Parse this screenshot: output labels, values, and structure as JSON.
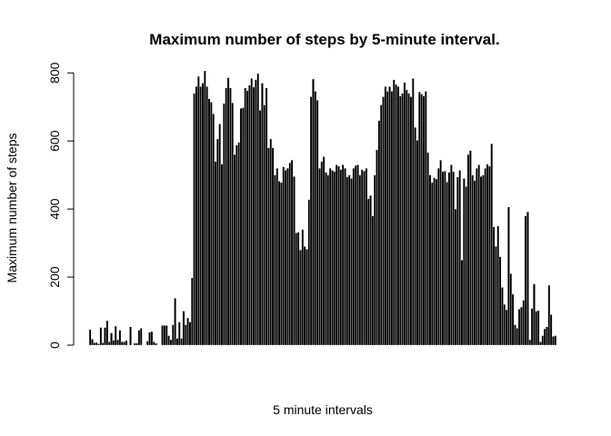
{
  "chart_data": {
    "type": "bar",
    "title": "Maximum number of steps by 5-minute interval.",
    "xlabel": "5 minute intervals",
    "ylabel": "Maximum number of steps",
    "ylim": [
      0,
      806
    ],
    "yticks": [
      0,
      200,
      400,
      600,
      800
    ],
    "grid": false,
    "values": [
      46,
      18,
      7,
      8,
      4,
      52,
      7,
      52,
      72,
      10,
      36,
      14,
      56,
      16,
      44,
      10,
      10,
      14,
      0,
      54,
      0,
      6,
      6,
      44,
      50,
      0,
      0,
      12,
      38,
      40,
      10,
      6,
      0,
      0,
      58,
      58,
      58,
      28,
      16,
      60,
      138,
      20,
      68,
      20,
      100,
      60,
      80,
      68,
      198,
      740,
      760,
      790,
      760,
      770,
      806,
      760,
      724,
      714,
      680,
      540,
      606,
      650,
      532,
      710,
      756,
      786,
      756,
      712,
      560,
      588,
      596,
      696,
      698,
      756,
      748,
      764,
      784,
      758,
      780,
      798,
      690,
      770,
      706,
      756,
      580,
      606,
      580,
      500,
      520,
      482,
      478,
      524,
      514,
      520,
      536,
      544,
      496,
      330,
      332,
      280,
      340,
      290,
      282,
      428,
      730,
      782,
      746,
      720,
      520,
      540,
      554,
      508,
      500,
      520,
      514,
      510,
      530,
      526,
      516,
      530,
      520,
      494,
      500,
      490,
      520,
      528,
      530,
      500,
      516,
      512,
      520,
      430,
      440,
      380,
      500,
      574,
      660,
      706,
      730,
      760,
      746,
      760,
      746,
      780,
      766,
      760,
      732,
      740,
      772,
      750,
      740,
      730,
      784,
      640,
      602,
      744,
      738,
      732,
      746,
      566,
      500,
      478,
      492,
      488,
      520,
      544,
      510,
      512,
      480,
      508,
      530,
      510,
      400,
      494,
      514,
      250,
      490,
      466,
      560,
      572,
      500,
      484,
      520,
      530,
      496,
      500,
      520,
      532,
      526,
      592,
      348,
      290,
      350,
      260,
      170,
      120,
      104,
      406,
      210,
      150,
      60,
      50,
      106,
      112,
      132,
      380,
      392,
      16,
      108,
      180,
      100,
      102,
      10,
      28,
      48,
      54,
      176,
      90,
      26,
      28
    ]
  }
}
